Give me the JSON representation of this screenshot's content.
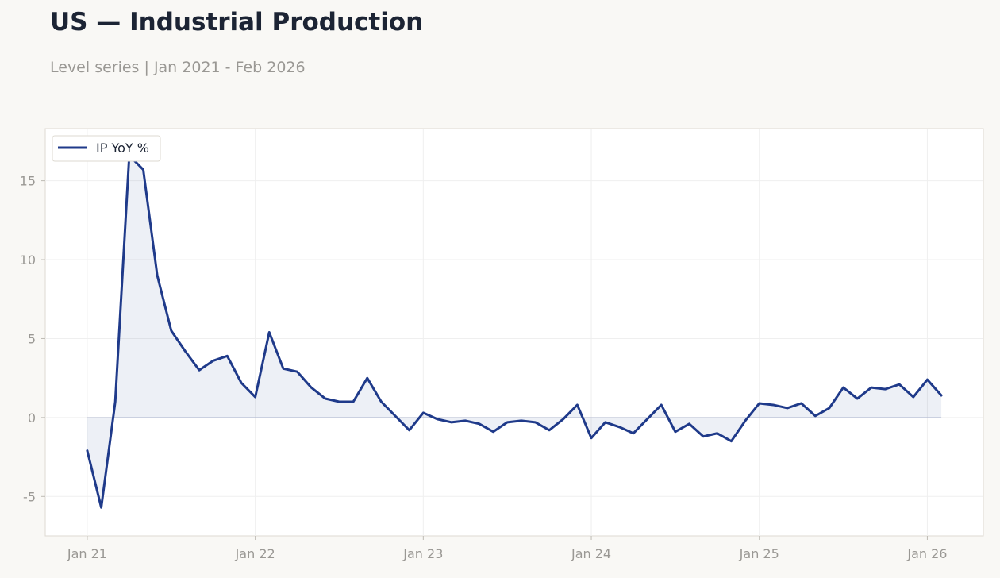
{
  "page": {
    "title": "US — Industrial Production",
    "subtitle": "Level series | Jan 2021 - Feb 2026"
  },
  "chart_data": {
    "type": "line",
    "title": "US — Industrial Production",
    "subtitle": "Level series | Jan 2021 - Feb 2026",
    "xlabel": "",
    "ylabel": "",
    "x_range": [
      "2020-10",
      "2026-05"
    ],
    "ylim": [
      -7.5,
      18.3
    ],
    "x_ticks": [
      {
        "date": "2021-01",
        "label": "Jan 21"
      },
      {
        "date": "2022-01",
        "label": "Jan 22"
      },
      {
        "date": "2023-01",
        "label": "Jan 23"
      },
      {
        "date": "2024-01",
        "label": "Jan 24"
      },
      {
        "date": "2025-01",
        "label": "Jan 25"
      },
      {
        "date": "2026-01",
        "label": "Jan 26"
      }
    ],
    "y_ticks": [
      {
        "value": -5,
        "label": "-5"
      },
      {
        "value": 0,
        "label": "0"
      },
      {
        "value": 5,
        "label": "5"
      },
      {
        "value": 10,
        "label": "10"
      },
      {
        "value": 15,
        "label": "15"
      }
    ],
    "grid": true,
    "legend": {
      "position": "top-left",
      "entries": [
        "IP YoY %"
      ]
    },
    "area_fill_to_zero": true,
    "colors": {
      "line": "#1f3a8a",
      "fill": "#1f3a8a",
      "grid": "#efefef",
      "frame": "#dedad2"
    },
    "series": [
      {
        "name": "IP YoY %",
        "x": [
          "2021-01",
          "2021-02",
          "2021-03",
          "2021-04",
          "2021-05",
          "2021-06",
          "2021-07",
          "2021-08",
          "2021-09",
          "2021-10",
          "2021-11",
          "2021-12",
          "2022-01",
          "2022-02",
          "2022-03",
          "2022-04",
          "2022-05",
          "2022-06",
          "2022-07",
          "2022-08",
          "2022-09",
          "2022-10",
          "2022-11",
          "2022-12",
          "2023-01",
          "2023-02",
          "2023-03",
          "2023-04",
          "2023-05",
          "2023-06",
          "2023-07",
          "2023-08",
          "2023-09",
          "2023-10",
          "2023-11",
          "2023-12",
          "2024-01",
          "2024-02",
          "2024-03",
          "2024-04",
          "2024-05",
          "2024-06",
          "2024-07",
          "2024-08",
          "2024-09",
          "2024-10",
          "2024-11",
          "2024-12",
          "2025-01",
          "2025-02",
          "2025-03",
          "2025-04",
          "2025-05",
          "2025-06",
          "2025-07",
          "2025-08",
          "2025-09",
          "2025-10",
          "2025-11",
          "2025-12",
          "2026-01",
          "2026-02"
        ],
        "values": [
          -2.1,
          -5.7,
          1.0,
          16.6,
          15.7,
          9.0,
          5.5,
          4.2,
          3.0,
          3.6,
          3.9,
          2.2,
          1.3,
          5.4,
          3.1,
          2.9,
          1.9,
          1.2,
          1.0,
          1.0,
          2.5,
          1.0,
          0.1,
          -0.8,
          0.3,
          -0.1,
          -0.3,
          -0.2,
          -0.4,
          -0.9,
          -0.3,
          -0.2,
          -0.3,
          -0.8,
          -0.1,
          0.8,
          -1.3,
          -0.3,
          -0.6,
          -1.0,
          -0.1,
          0.8,
          -0.9,
          -0.4,
          -1.2,
          -1.0,
          -1.5,
          -0.2,
          0.9,
          0.8,
          0.6,
          0.9,
          0.1,
          0.6,
          1.9,
          1.2,
          1.9,
          1.8,
          2.1,
          1.3,
          2.4,
          1.4
        ]
      }
    ]
  }
}
